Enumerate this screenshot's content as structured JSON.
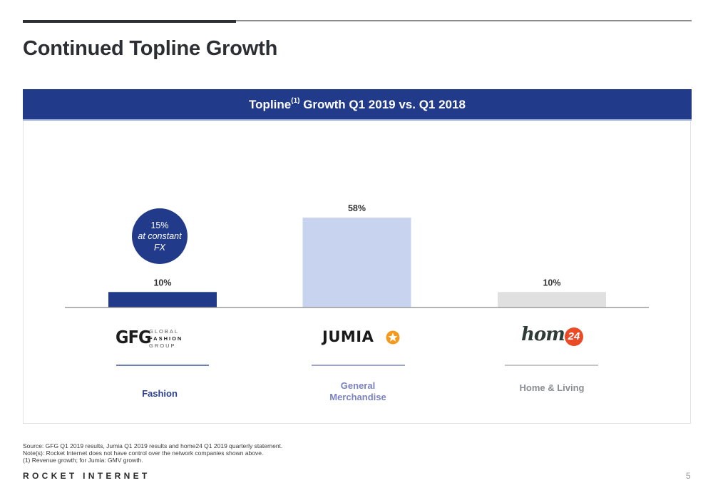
{
  "page": {
    "title": "Continued Topline Growth",
    "page_number": "5",
    "brand": "ROCKET INTERNET"
  },
  "panel": {
    "title_pre": "Topline",
    "title_sup": "(1)",
    "title_post": " Growth Q1 2019 vs. Q1 2018"
  },
  "chart_data": {
    "type": "bar",
    "title": "Topline(1) Growth Q1 2019 vs. Q1 2018",
    "categories": [
      "Fashion",
      "General Merchandise",
      "Home & Living"
    ],
    "companies": [
      "GFG",
      "Jumia",
      "home24"
    ],
    "values": [
      10,
      58,
      10
    ],
    "value_labels": [
      "10%",
      "58%",
      "10%"
    ],
    "unit": "%",
    "bar_colors": [
      "#213b8a",
      "#c8d3f0",
      "#e0e0e0"
    ],
    "ylim": [
      0,
      58
    ],
    "grid": false,
    "annotation": {
      "target": "Fashion",
      "lines": [
        "15%",
        "at constant",
        "FX"
      ],
      "color": "#213b8a"
    }
  },
  "categories": [
    {
      "label_lines": [
        "Fashion"
      ],
      "label_color": "#2d3f8f",
      "divider_color": "#6d7fb8",
      "logo": {
        "mark": "GFG",
        "words": [
          "GLOBAL",
          "FASHION",
          "GROUP"
        ]
      }
    },
    {
      "label_lines": [
        "General",
        "Merchandise"
      ],
      "label_color": "#7c82bf",
      "divider_color": "#9ea3d3",
      "logo": {
        "word": "JUMIA",
        "star_color": "#f39a1e"
      }
    },
    {
      "label_lines": [
        "Home & Living"
      ],
      "label_color": "#8a8d93",
      "divider_color": "#c4c4c4",
      "logo": {
        "word": "home",
        "badge": "24",
        "badge_color": "#ea4a25",
        "word_color": "#2f3b36"
      }
    }
  ],
  "footnotes": [
    "Source: GFG Q1 2019 results, Jumia Q1 2019 results and home24 Q1 2019 quarterly statement.",
    "Note(s): Rocket Internet does not have control over the network companies shown above.",
    "(1)   Revenue growth; for Jumia: GMV growth."
  ]
}
